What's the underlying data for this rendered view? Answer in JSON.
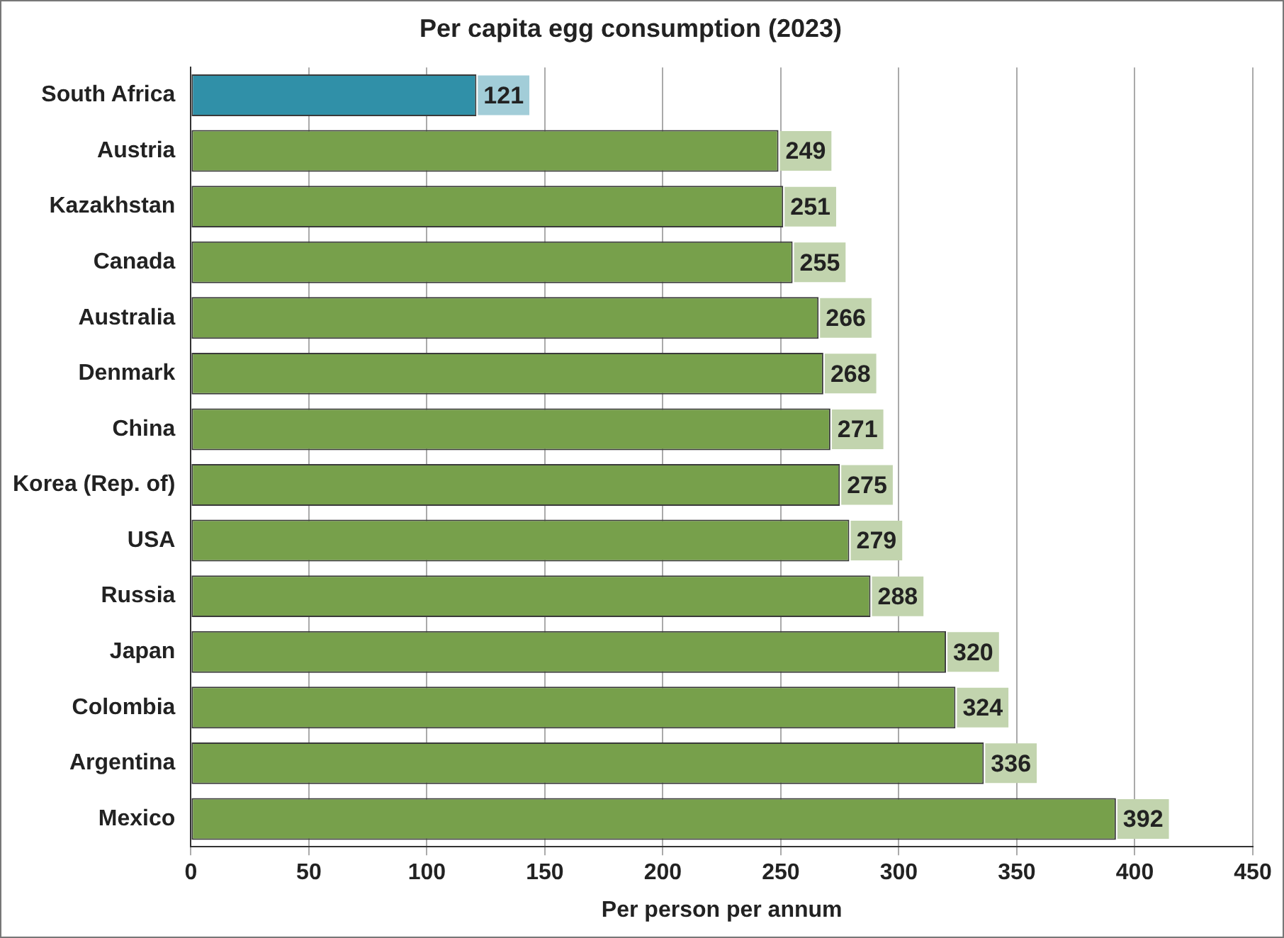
{
  "chart_data": {
    "type": "bar",
    "orientation": "horizontal",
    "title": "Per capita egg consumption (2023)",
    "xlabel": "Per person per annum",
    "categories": [
      "South Africa",
      "Austria",
      "Kazakhstan",
      "Canada",
      "Australia",
      "Denmark",
      "China",
      "Korea (Rep. of)",
      "USA",
      "Russia",
      "Japan",
      "Colombia",
      "Argentina",
      "Mexico"
    ],
    "values": [
      121,
      249,
      251,
      255,
      266,
      268,
      271,
      275,
      279,
      288,
      320,
      324,
      336,
      392
    ],
    "colors": [
      "#3090a8",
      "#77a04b",
      "#77a04b",
      "#77a04b",
      "#77a04b",
      "#77a04b",
      "#77a04b",
      "#77a04b",
      "#77a04b",
      "#77a04b",
      "#77a04b",
      "#77a04b",
      "#77a04b",
      "#77a04b"
    ],
    "xlim": [
      0,
      450
    ],
    "xticks": [
      0,
      50,
      100,
      150,
      200,
      250,
      300,
      350,
      400,
      450
    ],
    "grid": "x",
    "data_labels": true,
    "legend": false
  }
}
